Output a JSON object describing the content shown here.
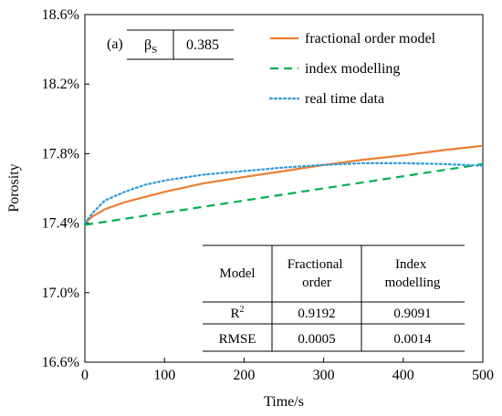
{
  "chart_data": {
    "type": "line",
    "panel_label": "(a)",
    "xlabel": "Time/s",
    "ylabel": "Porosity",
    "xlim": [
      0,
      500
    ],
    "ylim": [
      16.6,
      18.6
    ],
    "x_ticks": [
      0,
      100,
      200,
      300,
      400,
      500
    ],
    "x_tick_labels": [
      "0",
      "100",
      "200",
      "300",
      "400",
      "500"
    ],
    "y_ticks": [
      16.6,
      17.0,
      17.4,
      17.8,
      18.2,
      18.6
    ],
    "y_tick_labels": [
      "16.6%",
      "17.0%",
      "17.4%",
      "17.8%",
      "18.2%",
      "18.6%"
    ],
    "grid": false,
    "legend_position": "top-right",
    "series": [
      {
        "name": "fractional order model",
        "color": "#ED7D31",
        "style": "solid",
        "x": [
          0,
          10,
          25,
          50,
          100,
          150,
          200,
          250,
          300,
          350,
          400,
          450,
          500
        ],
        "y": [
          17.4,
          17.44,
          17.48,
          17.52,
          17.58,
          17.63,
          17.665,
          17.7,
          17.735,
          17.765,
          17.79,
          17.82,
          17.845
        ]
      },
      {
        "name": "index modelling",
        "color": "#00B050",
        "style": "dashed",
        "x": [
          0,
          100,
          200,
          300,
          400,
          500
        ],
        "y": [
          17.39,
          17.46,
          17.53,
          17.6,
          17.67,
          17.74
        ]
      },
      {
        "name": "real time data",
        "color": "#2E9AD8",
        "style": "dotted",
        "x": [
          0,
          10,
          25,
          50,
          75,
          100,
          150,
          200,
          250,
          300,
          350,
          400,
          450,
          500
        ],
        "y": [
          17.4,
          17.46,
          17.53,
          17.58,
          17.62,
          17.645,
          17.68,
          17.7,
          17.72,
          17.735,
          17.745,
          17.745,
          17.74,
          17.73
        ]
      }
    ],
    "parameter_box": {
      "symbol": "β",
      "subscript": "S",
      "value": "0.385"
    },
    "table": {
      "header": [
        "Model",
        "Fractional order",
        "Index modelling"
      ],
      "header_lines": [
        [
          "Model"
        ],
        [
          "Fractional",
          "order"
        ],
        [
          "Index",
          "modelling"
        ]
      ],
      "rows": [
        {
          "label": "R²",
          "label_base": "R",
          "label_sup": "2",
          "values": [
            "0.9192",
            "0.9091"
          ]
        },
        {
          "label": "RMSE",
          "values": [
            "0.0005",
            "0.0014"
          ]
        }
      ]
    }
  }
}
